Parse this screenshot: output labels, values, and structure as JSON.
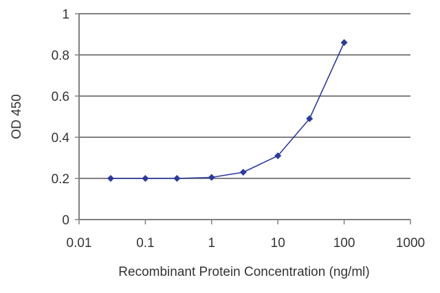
{
  "chart_data": {
    "type": "line",
    "x_scale": "log",
    "xlabel": "Recombinant Protein Concentration (ng/ml)",
    "ylabel": "OD 450",
    "xlim": [
      0.01,
      1000
    ],
    "ylim": [
      0,
      1
    ],
    "x_ticks": [
      "0.01",
      "0.1",
      "1",
      "10",
      "100",
      "1000"
    ],
    "y_ticks": [
      "0",
      "0.2",
      "0.4",
      "0.6",
      "0.8",
      "1"
    ],
    "grid": "horizontal",
    "legend": "none",
    "series": [
      {
        "color": "#2b3a9e",
        "marker": "diamond",
        "x": [
          0.03,
          0.1,
          0.3,
          1,
          3,
          10,
          30,
          100
        ],
        "y": [
          0.2,
          0.2,
          0.2,
          0.205,
          0.23,
          0.31,
          0.49,
          0.86
        ]
      }
    ]
  }
}
